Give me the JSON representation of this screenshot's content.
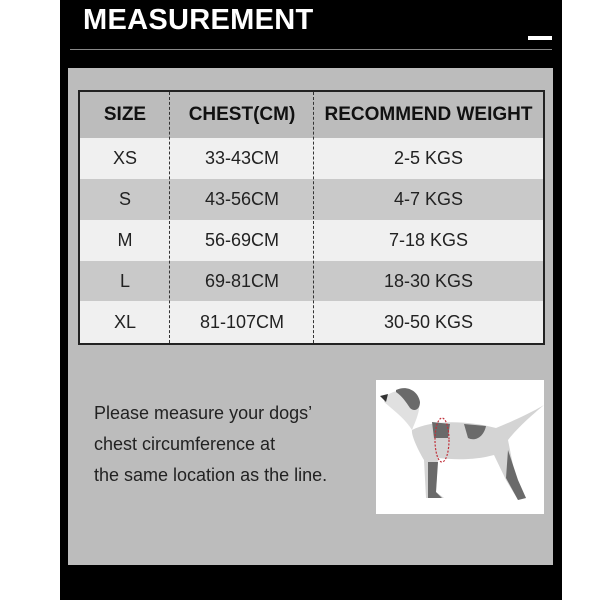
{
  "header": {
    "title": "MEASUREMENT"
  },
  "table": {
    "columns": [
      "SIZE",
      "CHEST(CM)",
      "RECOMMEND WEIGHT"
    ],
    "rows": [
      [
        "XS",
        "33-43CM",
        "2-5 KGS"
      ],
      [
        "S",
        "43-56CM",
        "4-7 KGS"
      ],
      [
        "M",
        "56-69CM",
        "7-18 KGS"
      ],
      [
        "L",
        "69-81CM",
        "18-30 KGS"
      ],
      [
        "XL",
        "81-107CM",
        "30-50 KGS"
      ]
    ]
  },
  "note": {
    "lines": [
      "Please measure your dogs’",
      "chest circumference at",
      "the same location as the line."
    ]
  },
  "colors": {
    "frame": "#000000",
    "panel": "#bcbcbc",
    "row_light": "#f0f0f0",
    "row_dark": "#c9c9c9",
    "measure_line": "#c0303a"
  }
}
